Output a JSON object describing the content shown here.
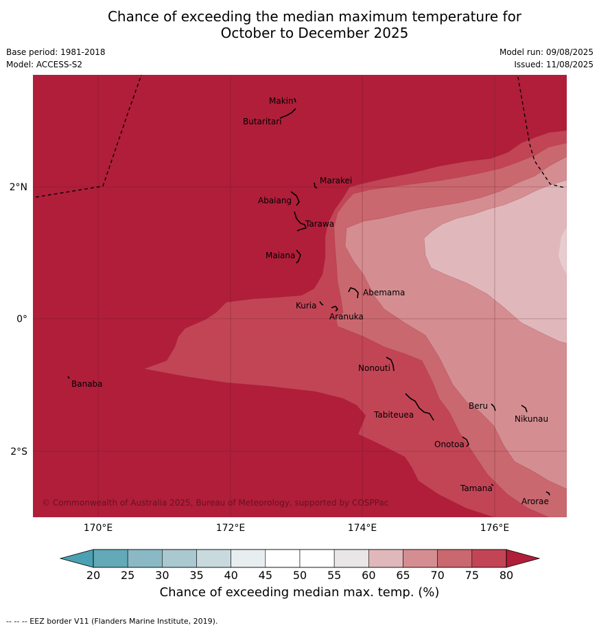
{
  "title": {
    "line1": "Chance of exceeding the median maximum temperature for",
    "line2": "October to December 2025"
  },
  "meta": {
    "base_period": "Base period: 1981-2018",
    "model": "Model: ACCESS-S2",
    "model_run": "Model run: 09/08/2025",
    "issued": "Issued: 11/08/2025"
  },
  "map": {
    "lon_labels": [
      "170°E",
      "172°E",
      "174°E",
      "176°E"
    ],
    "lat_labels": [
      "2°N",
      "0°",
      "2°S"
    ],
    "islands": [
      "Makin",
      "Butaritari",
      "Marakei",
      "Abaiang",
      "Tarawa",
      "Maiana",
      "Abemama",
      "Kuria",
      "Aranuka",
      "Nonouti",
      "Banaba",
      "Tabiteuea",
      "Beru",
      "Nikunau",
      "Onotoa",
      "Tamana",
      "Arorae"
    ],
    "copyright": "© Commonwealth of Australia 2025, Bureau of Meteorology, supported by COSPPac",
    "colors": {
      "c80": "#b01e3a",
      "c75_80": "#c24556",
      "c70_75": "#c9686f",
      "c65_70": "#d48e92",
      "c60_65": "#e0b8bb",
      "c55_60": "#e8e6e6"
    }
  },
  "colorbar": {
    "ticks": [
      "20",
      "25",
      "30",
      "35",
      "40",
      "45",
      "50",
      "55",
      "60",
      "65",
      "70",
      "75",
      "80"
    ],
    "colors": [
      "#63a9b8",
      "#8ab9c5",
      "#a9c8cf",
      "#c8dadd",
      "#e8eef0",
      "#ffffff",
      "#ffffff",
      "#e8e6e6",
      "#e0b8bb",
      "#d48e92",
      "#c9686f",
      "#c24556"
    ],
    "low_color": "#4aa1b1",
    "high_color": "#b01e3a",
    "title": "Chance of exceeding median max. temp. (%)"
  },
  "footer": "--  --  -- EEZ border V11 (Flanders Marine Institute, 2019)."
}
